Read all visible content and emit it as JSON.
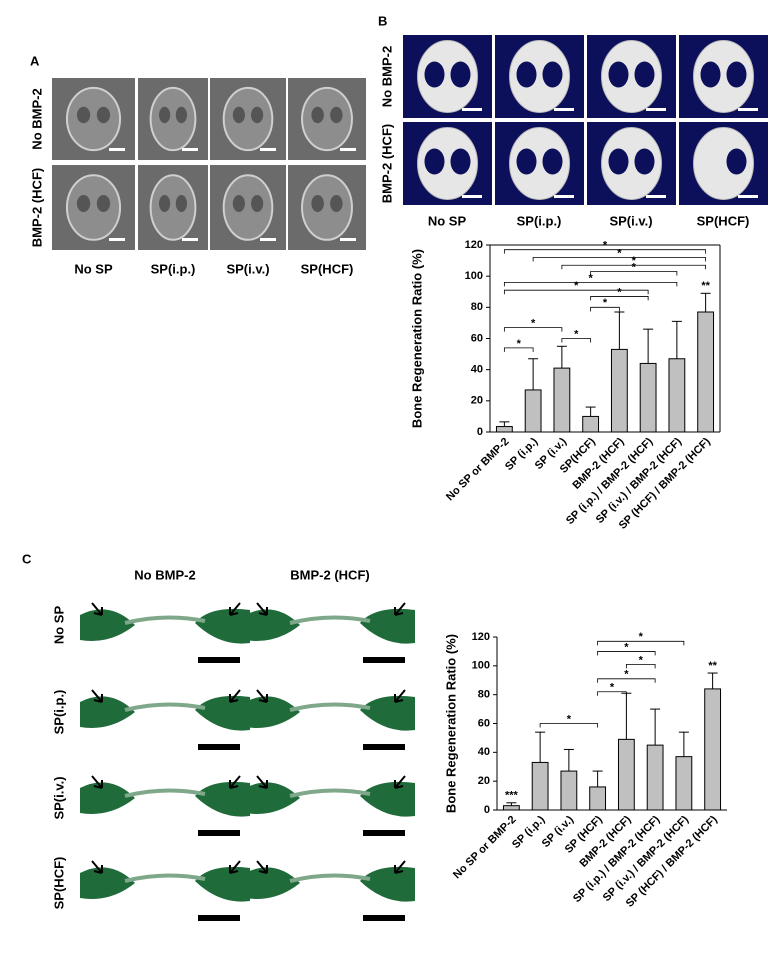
{
  "panel_a": {
    "label": "A",
    "rows": [
      "No BMP-2",
      "BMP-2 (HCF)"
    ],
    "columns": [
      "No SP",
      "SP(i.p.)",
      "SP(i.v.)",
      "SP(HCF)"
    ]
  },
  "panel_b": {
    "label": "B",
    "rows": [
      "No BMP-2",
      "BMP-2 (HCF)"
    ],
    "columns": [
      "No SP",
      "SP(i.p.)",
      "SP(i.v.)",
      "SP(HCF)"
    ]
  },
  "panel_c": {
    "label": "C",
    "columns": [
      "No BMP-2",
      "BMP-2 (HCF)"
    ],
    "rows": [
      "No SP",
      "SP(i.p.)",
      "SP(i.v.)",
      "SP(HCF)"
    ]
  },
  "chart_data": [
    {
      "type": "bar",
      "ylabel": "Bone Regeneration Ratio (%)",
      "categories": [
        "No SP or BMP-2",
        "SP (i.p.)",
        "SP (i.v.)",
        "SP(HCF)",
        "BMP-2 (HCF)",
        "SP (i.p.) / BMP-2 (HCF)",
        "SP (i.v.) / BMP-2 (HCF)",
        "SP (HCF) / BMP-2 (HCF)"
      ],
      "values": [
        3.5,
        27,
        41,
        10,
        53,
        44,
        47,
        77
      ],
      "errors": [
        3,
        20,
        14,
        6,
        24,
        22,
        24,
        12
      ],
      "color": "#c0c0c0",
      "ylim": [
        0,
        120
      ],
      "yticks": [
        0,
        20,
        40,
        60,
        80,
        100,
        120
      ],
      "frame": true,
      "annotations": [
        {
          "category": 7,
          "text": "**"
        }
      ],
      "brackets": [
        {
          "from": 0,
          "to": 7,
          "y": 117,
          "text": "*"
        },
        {
          "from": 1,
          "to": 7,
          "y": 112,
          "text": "*"
        },
        {
          "from": 2,
          "to": 7,
          "y": 107,
          "text": "*"
        },
        {
          "from": 3,
          "to": 6,
          "y": 103,
          "text": "*"
        },
        {
          "from": 0,
          "to": 6,
          "y": 96,
          "text": "*"
        },
        {
          "from": 0,
          "to": 5,
          "y": 91,
          "text": "*"
        },
        {
          "from": 3,
          "to": 5,
          "y": 87,
          "text": "*"
        },
        {
          "from": 3,
          "to": 4,
          "y": 80,
          "text": "*"
        },
        {
          "from": 0,
          "to": 2,
          "y": 67,
          "text": "*"
        },
        {
          "from": 2,
          "to": 3,
          "y": 60,
          "text": "*"
        },
        {
          "from": 0,
          "to": 1,
          "y": 54,
          "text": "*"
        }
      ]
    },
    {
      "type": "bar",
      "ylabel": "Bone Regeneration Ratio (%)",
      "categories": [
        "No SP or BMP-2",
        "SP (i.p.)",
        "SP (i.v.)",
        "SP (HCF)",
        "BMP-2 (HCF)",
        "SP (i.p.) / BMP-2 (HCF)",
        "SP (i.v.) / BMP-2 (HCF)",
        "SP (HCF) / BMP-2 (HCF)"
      ],
      "values": [
        3,
        33,
        27,
        16,
        49,
        45,
        37,
        84
      ],
      "errors": [
        2,
        21,
        15,
        11,
        32,
        25,
        17,
        11
      ],
      "color": "#c0c0c0",
      "ylim": [
        0,
        120
      ],
      "yticks": [
        0,
        20,
        40,
        60,
        80,
        100,
        120
      ],
      "frame": false,
      "annotations": [
        {
          "category": 0,
          "text": "***"
        },
        {
          "category": 7,
          "text": "**"
        }
      ],
      "brackets": [
        {
          "from": 3,
          "to": 6,
          "y": 117,
          "text": "*"
        },
        {
          "from": 3,
          "to": 5,
          "y": 110,
          "text": "*"
        },
        {
          "from": 4,
          "to": 5,
          "y": 101,
          "text": "*"
        },
        {
          "from": 3,
          "to": 5,
          "y": 91,
          "text": "*"
        },
        {
          "from": 3,
          "to": 4,
          "y": 82,
          "text": "*"
        },
        {
          "from": 1,
          "to": 3,
          "y": 60,
          "text": "*"
        }
      ]
    }
  ]
}
